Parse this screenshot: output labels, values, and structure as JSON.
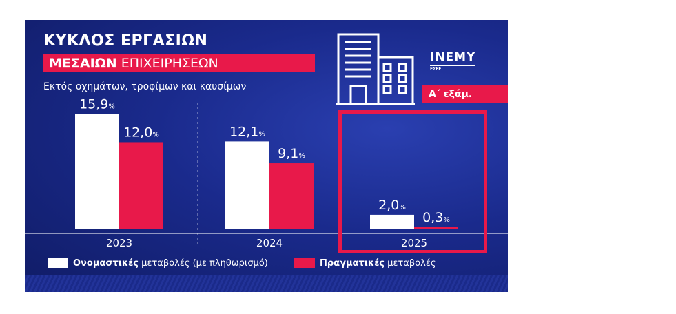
{
  "header": {
    "title_line1": "ΚΥΚΛΟΣ ΕΡΓΑΣΙΩΝ",
    "title_line2_bold": "ΜΕΣΑΙΩΝ",
    "title_line2_rest": "ΕΠΙΧΕΙΡΗΣΕΩΝ",
    "subtitle": "Εκτός οχημάτων, τροφίμων και καυσίμων",
    "badge": "Α΄ εξάμ."
  },
  "logo": {
    "name": "INEMY",
    "org": "ΕΣΕΕ"
  },
  "legend": [
    {
      "bold": "Ονομαστικές",
      "rest": "μεταβολές (με πληθωρισμό)"
    },
    {
      "bold": "Πραγματικές",
      "rest": "μεταβολές"
    }
  ],
  "colors": {
    "background": "#1a2a8c",
    "nominal": "#ffffff",
    "real": "#e8194a",
    "accent": "#e8194a"
  },
  "chart_data": {
    "type": "bar",
    "categories": [
      "2023",
      "2024",
      "2025"
    ],
    "series": [
      {
        "name": "Ονομαστικές μεταβολές (με πληθωρισμό)",
        "values": [
          15.9,
          12.1,
          2.0
        ],
        "labels": [
          "15,9",
          "12,1",
          "2,0"
        ]
      },
      {
        "name": "Πραγματικές μεταβολές",
        "values": [
          12.0,
          9.1,
          0.3
        ],
        "labels": [
          "12,0",
          "9,1",
          "0,3"
        ]
      }
    ],
    "unit": "%",
    "ylim": [
      0,
      16.5
    ],
    "grid": false,
    "highlight": "2025",
    "legend_position": "bottom"
  }
}
